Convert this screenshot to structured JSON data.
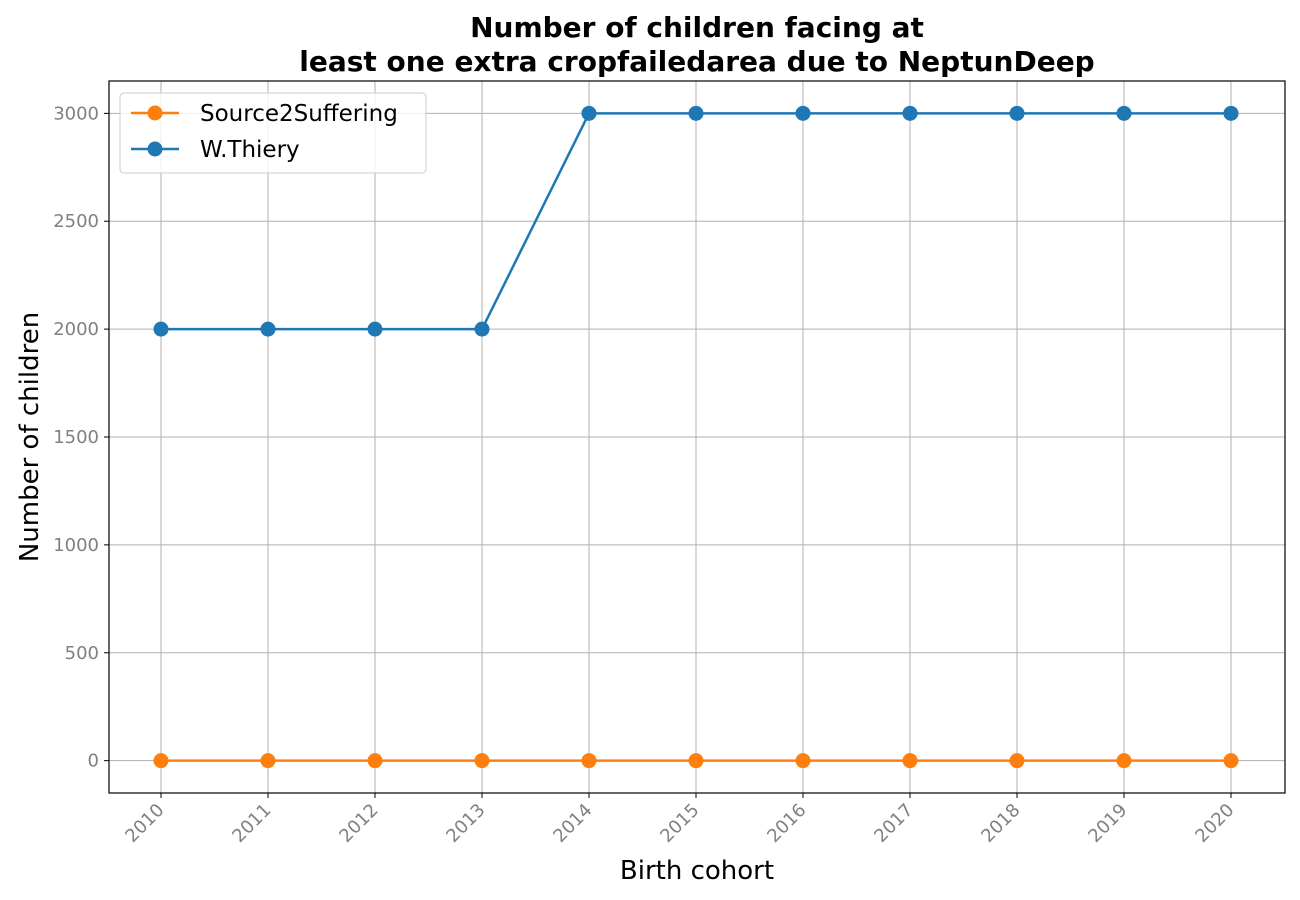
{
  "chart_data": {
    "type": "line",
    "title": [
      "Number of children facing at",
      "least one extra cropfailedarea due to NeptunDeep"
    ],
    "xlabel": "Birth cohort",
    "ylabel": "Number of children",
    "x": [
      "2010",
      "2011",
      "2012",
      "2013",
      "2014",
      "2015",
      "2016",
      "2017",
      "2018",
      "2019",
      "2020"
    ],
    "ylim": [
      -150,
      3150
    ],
    "yticks": [
      0,
      500,
      1000,
      1500,
      2000,
      2500,
      3000
    ],
    "grid": true,
    "legend_position": "top-left",
    "series": [
      {
        "name": "Source2Suffering",
        "color": "#ff7f0e",
        "values": [
          0,
          0,
          0,
          0,
          0,
          0,
          0,
          0,
          0,
          0,
          0
        ]
      },
      {
        "name": "W.Thiery",
        "color": "#1f77b4",
        "values": [
          2000,
          2000,
          2000,
          2000,
          3000,
          3000,
          3000,
          3000,
          3000,
          3000,
          3000
        ]
      }
    ]
  }
}
